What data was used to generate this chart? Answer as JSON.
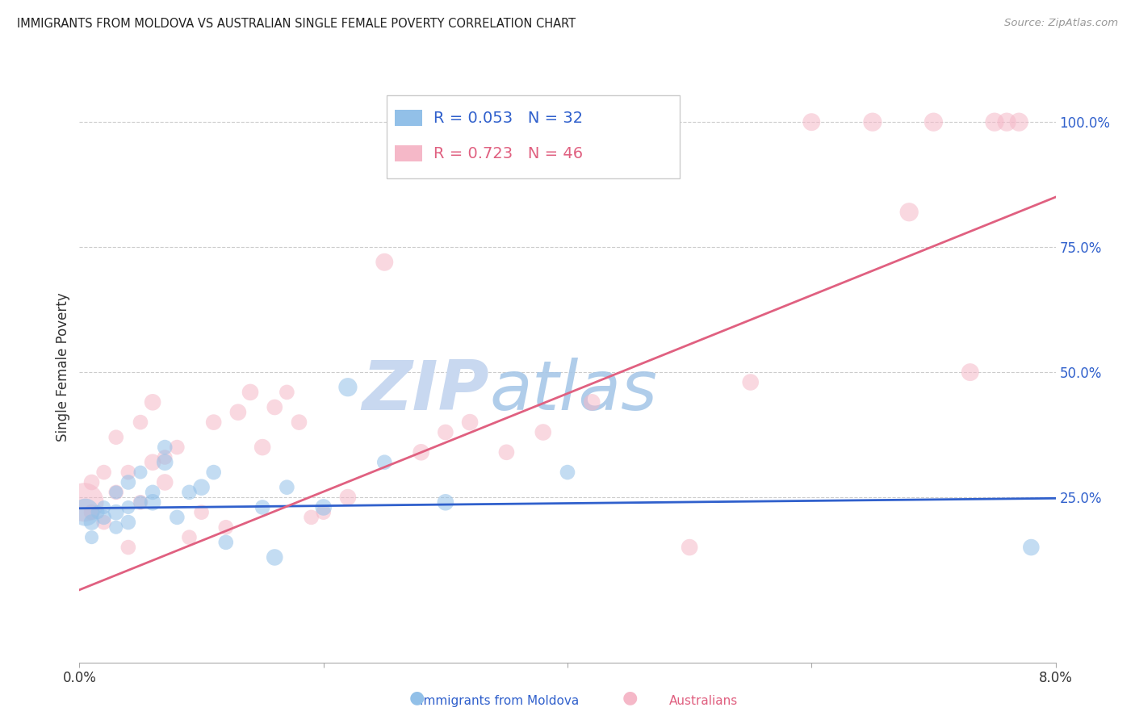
{
  "title": "IMMIGRANTS FROM MOLDOVA VS AUSTRALIAN SINGLE FEMALE POVERTY CORRELATION CHART",
  "source": "Source: ZipAtlas.com",
  "ylabel": "Single Female Poverty",
  "legend_label_blue": "Immigrants from Moldova",
  "legend_label_pink": "Australians",
  "legend_r_blue": "R = 0.053",
  "legend_n_blue": "N = 32",
  "legend_r_pink": "R = 0.723",
  "legend_n_pink": "N = 46",
  "blue_color": "#92c0e8",
  "pink_color": "#f5b8c8",
  "blue_line_color": "#3060cc",
  "pink_line_color": "#e06080",
  "text_blue_color": "#3060cc",
  "text_pink_color": "#e06080",
  "watermark_zip": "ZIP",
  "watermark_atlas": "atlas",
  "watermark_color": "#c8d8f0",
  "xlim": [
    0.0,
    0.08
  ],
  "ylim": [
    -0.08,
    1.1
  ],
  "blue_scatter_x": [
    0.0005,
    0.001,
    0.001,
    0.0015,
    0.002,
    0.002,
    0.003,
    0.003,
    0.003,
    0.004,
    0.004,
    0.004,
    0.005,
    0.005,
    0.006,
    0.006,
    0.007,
    0.007,
    0.008,
    0.009,
    0.01,
    0.011,
    0.012,
    0.015,
    0.016,
    0.017,
    0.02,
    0.022,
    0.025,
    0.03,
    0.04,
    0.078
  ],
  "blue_scatter_y": [
    0.22,
    0.2,
    0.17,
    0.22,
    0.21,
    0.23,
    0.22,
    0.19,
    0.26,
    0.2,
    0.23,
    0.28,
    0.3,
    0.24,
    0.26,
    0.24,
    0.32,
    0.35,
    0.21,
    0.26,
    0.27,
    0.3,
    0.16,
    0.23,
    0.13,
    0.27,
    0.23,
    0.47,
    0.32,
    0.24,
    0.3,
    0.15
  ],
  "blue_scatter_size": [
    600,
    200,
    150,
    150,
    180,
    150,
    200,
    150,
    150,
    180,
    150,
    180,
    150,
    150,
    180,
    220,
    220,
    180,
    180,
    180,
    220,
    180,
    180,
    180,
    220,
    180,
    220,
    280,
    180,
    220,
    180,
    220
  ],
  "pink_scatter_x": [
    0.0004,
    0.001,
    0.001,
    0.002,
    0.002,
    0.003,
    0.003,
    0.004,
    0.004,
    0.005,
    0.005,
    0.006,
    0.006,
    0.007,
    0.007,
    0.008,
    0.009,
    0.01,
    0.011,
    0.012,
    0.013,
    0.014,
    0.015,
    0.016,
    0.017,
    0.018,
    0.019,
    0.02,
    0.022,
    0.025,
    0.028,
    0.03,
    0.032,
    0.035,
    0.038,
    0.042,
    0.05,
    0.055,
    0.06,
    0.065,
    0.068,
    0.07,
    0.073,
    0.075,
    0.076,
    0.077
  ],
  "pink_scatter_y": [
    0.24,
    0.22,
    0.28,
    0.2,
    0.3,
    0.26,
    0.37,
    0.3,
    0.15,
    0.24,
    0.4,
    0.32,
    0.44,
    0.33,
    0.28,
    0.35,
    0.17,
    0.22,
    0.4,
    0.19,
    0.42,
    0.46,
    0.35,
    0.43,
    0.46,
    0.4,
    0.21,
    0.22,
    0.25,
    0.72,
    0.34,
    0.38,
    0.4,
    0.34,
    0.38,
    0.44,
    0.15,
    0.48,
    1.0,
    1.0,
    0.82,
    1.0,
    0.5,
    1.0,
    1.0,
    1.0
  ],
  "pink_scatter_size": [
    1200,
    200,
    200,
    180,
    180,
    180,
    180,
    180,
    180,
    180,
    180,
    220,
    220,
    180,
    220,
    180,
    180,
    180,
    200,
    180,
    220,
    220,
    220,
    200,
    180,
    200,
    180,
    180,
    220,
    250,
    220,
    200,
    220,
    200,
    220,
    220,
    220,
    220,
    250,
    280,
    280,
    280,
    250,
    280,
    280,
    280
  ],
  "blue_trend_x": [
    0.0,
    0.08
  ],
  "blue_trend_y": [
    0.228,
    0.248
  ],
  "pink_trend_x": [
    0.0,
    0.08
  ],
  "pink_trend_y": [
    0.065,
    0.85
  ]
}
